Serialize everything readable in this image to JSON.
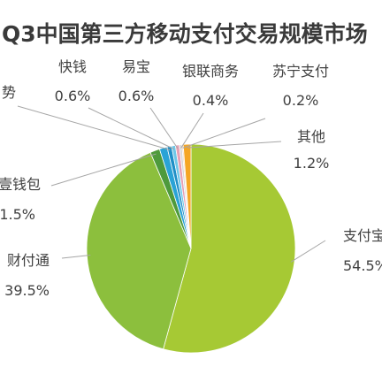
{
  "chart_data": {
    "type": "pie",
    "title": "Q3中国第三方移动支付交易规模市场",
    "slices": [
      {
        "name": "支付宝",
        "label": "支付宝",
        "value": 54.5,
        "value_text": "54.5%",
        "color": "#a6c934"
      },
      {
        "name": "财付通",
        "label": "财付通",
        "value": 39.5,
        "value_text": "39.5%",
        "color": "#8cbf3d"
      },
      {
        "name": "壹钱包",
        "label": "壹钱包",
        "value": 1.5,
        "value_text": "1.5%",
        "color": "#4e9a3c"
      },
      {
        "name": "",
        "label": "",
        "value": 1.2,
        "value_text": "",
        "color": "#2aa3d6"
      },
      {
        "name": "势",
        "label": "势",
        "value": 0.7,
        "value_text": "",
        "color": "#1f8fc7"
      },
      {
        "name": "快钱",
        "label": "快钱",
        "value": 0.6,
        "value_text": "0.6%",
        "color": "#6ec7e8"
      },
      {
        "name": "易宝",
        "label": "易宝",
        "value": 0.6,
        "value_text": "0.6%",
        "color": "#e8a0b4"
      },
      {
        "name": "银联商务",
        "label": "银联商务",
        "value": 0.4,
        "value_text": "0.4%",
        "color": "#d8d8d8"
      },
      {
        "name": "苏宁支付",
        "label": "苏宁支付",
        "value": 0.2,
        "value_text": "0.2%",
        "color": "#f2c9a0"
      },
      {
        "name": "其他",
        "label": "其他",
        "value": 1.2,
        "value_text": "1.2%",
        "color": "#f5a623"
      }
    ]
  }
}
